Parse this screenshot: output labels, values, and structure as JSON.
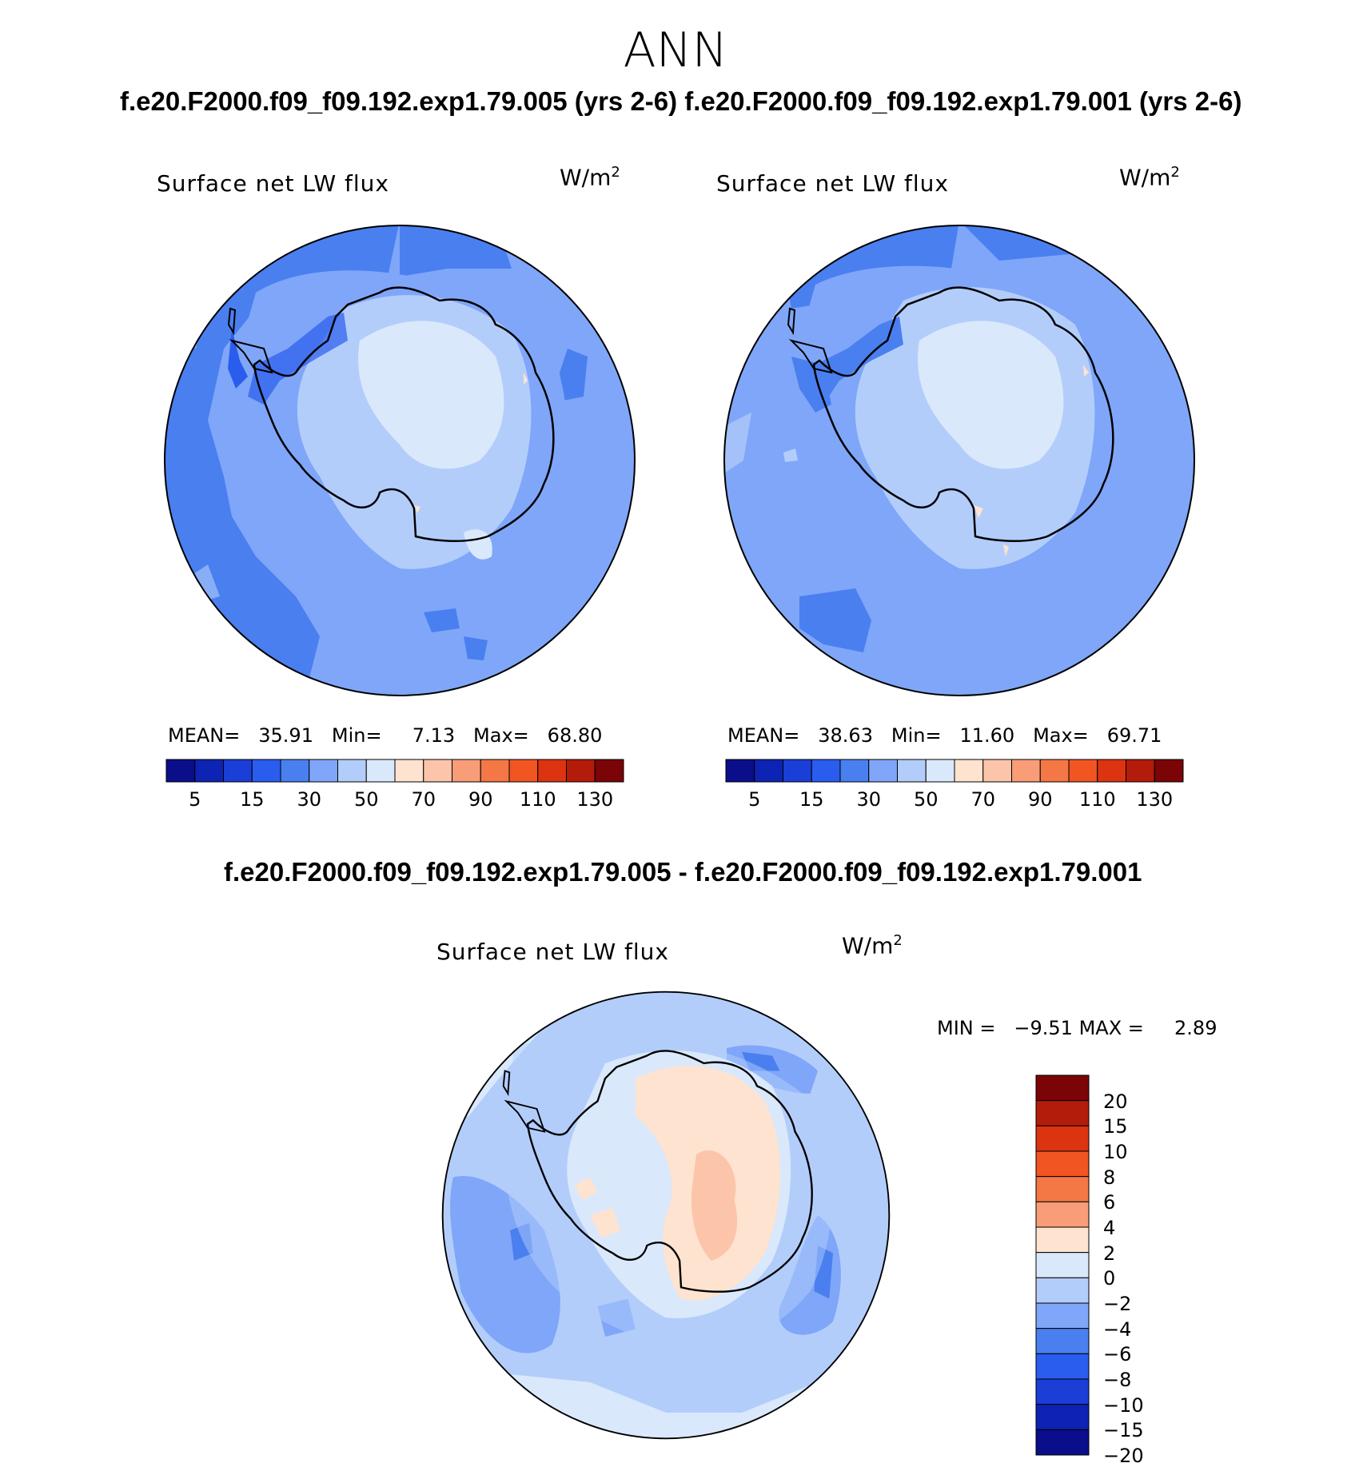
{
  "header": {
    "season": "ANN",
    "case_pair_title": "f.e20.F2000.f09_f09.192.exp1.79.005 (yrs 2-6) f.e20.F2000.f09_f09.192.exp1.79.001 (yrs 2-6)",
    "diff_title": "f.e20.F2000.f09_f09.192.exp1.79.005 - f.e20.F2000.f09_f09.192.exp1.79.001"
  },
  "panels": [
    {
      "title": "Surface net LW flux",
      "units": "W/m",
      "units_exp": "2",
      "stats": {
        "mean_label": "MEAN=",
        "mean": "35.91",
        "min_label": "Min=",
        "min": "7.13",
        "max_label": "Max=",
        "max": "68.80"
      }
    },
    {
      "title": "Surface net LW flux",
      "units": "W/m",
      "units_exp": "2",
      "stats": {
        "mean_label": "MEAN=",
        "mean": "38.63",
        "min_label": "Min=",
        "min": "11.60",
        "max_label": "Max=",
        "max": "69.71"
      }
    }
  ],
  "diff_panel": {
    "title": "Surface net LW flux",
    "units": "W/m",
    "units_exp": "2",
    "stats": {
      "min_label": "MIN =",
      "min": "−9.51",
      "max_label": "MAX =",
      "max": "2.89"
    }
  },
  "colorbar_top": {
    "colors": [
      "#0a0e8a",
      "#0d23b4",
      "#1a3ed6",
      "#2a5cee",
      "#4a7ff0",
      "#7fa6f8",
      "#b3cdfb",
      "#dae8fb",
      "#fde3d0",
      "#fcc4a8",
      "#f89d77",
      "#f47746",
      "#f05522",
      "#dc3410",
      "#b31b0a",
      "#7a0406"
    ],
    "labels": [
      "5",
      "15",
      "30",
      "50",
      "70",
      "90",
      "110",
      "130"
    ]
  },
  "colorbar_diff": {
    "colors": [
      "#7a0406",
      "#b31b0a",
      "#dc3410",
      "#f05522",
      "#f47746",
      "#f89d77",
      "#fde3d0",
      "#dae8fb",
      "#b3cdfb",
      "#7fa6f8",
      "#4a7ff0",
      "#2a5cee",
      "#1a3ed6",
      "#0d23b4",
      "#0a0e8a"
    ],
    "labels": [
      "20",
      "15",
      "10",
      "8",
      "6",
      "4",
      "2",
      "0",
      "−2",
      "−4",
      "−6",
      "−8",
      "−10",
      "−15",
      "−20"
    ]
  },
  "palette": {
    "ocean_dark": "#4a7ff0",
    "ocean_mid": "#7fa6f8",
    "ice_light": "#b3cdfb",
    "ice_pale": "#dae8fb",
    "warm_pale": "#fde3d0",
    "warm_light": "#fcc4a8",
    "strong_blue": "#2a5cee"
  }
}
